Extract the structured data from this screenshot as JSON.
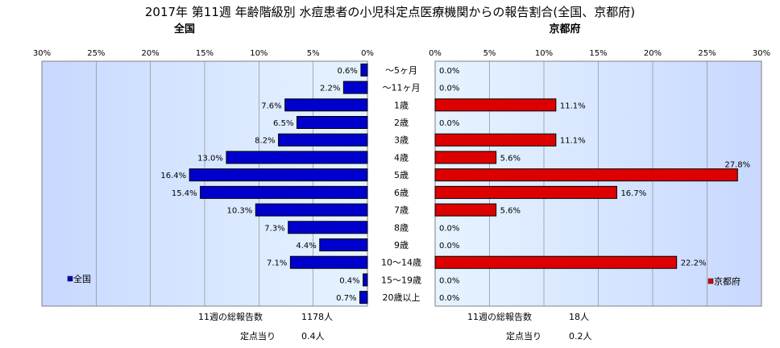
{
  "title": "2017年 第11週 年齢階級別 水痘患者の小児科定点医療機関からの報告割合(全国、京都府)",
  "left_subtitle": "全国",
  "right_subtitle": "京都府",
  "colors": {
    "national": "#0000cc",
    "kyoto": "#dd0000",
    "plot_bg": "#c8d8ff",
    "plot_bg_light": "#e6f4ff",
    "grid": "#7f7f7f"
  },
  "chart_data": {
    "type": "bar",
    "orientation": "horizontal",
    "categories": [
      "～5ヶ月",
      "～11ヶ月",
      "1歳",
      "2歳",
      "3歳",
      "4歳",
      "5歳",
      "6歳",
      "7歳",
      "8歳",
      "9歳",
      "10～14歳",
      "15～19歳",
      "20歳以上"
    ],
    "xlim": [
      0,
      30
    ],
    "ticks": [
      "0%",
      "5%",
      "10%",
      "15%",
      "20%",
      "25%",
      "30%"
    ],
    "series": [
      {
        "name": "全国",
        "values": [
          0.6,
          2.2,
          7.6,
          6.5,
          8.2,
          13.0,
          16.4,
          15.4,
          10.3,
          7.3,
          4.4,
          7.1,
          0.4,
          0.7
        ],
        "labels": [
          "0.6%",
          "2.2%",
          "7.6%",
          "6.5%",
          "8.2%",
          "13.0%",
          "16.4%",
          "15.4%",
          "10.3%",
          "7.3%",
          "4.4%",
          "7.1%",
          "0.4%",
          "0.7%"
        ]
      },
      {
        "name": "京都府",
        "values": [
          0.0,
          0.0,
          11.1,
          0.0,
          11.1,
          5.6,
          27.8,
          16.7,
          5.6,
          0.0,
          0.0,
          22.2,
          0.0,
          0.0
        ],
        "labels": [
          "0.0%",
          "0.0%",
          "11.1%",
          "0.0%",
          "11.1%",
          "5.6%",
          "27.8%",
          "16.7%",
          "5.6%",
          "0.0%",
          "0.0%",
          "22.2%",
          "0.0%",
          "0.0%"
        ]
      }
    ],
    "legend": [
      "bottom-left",
      "bottom-right"
    ],
    "grid": true
  },
  "footer": {
    "national_total_label": "11週の総報告数",
    "national_total_value": "1178人",
    "national_per_label": "定点当り",
    "national_per_value": "0.4人",
    "kyoto_total_label": "11週の総報告数",
    "kyoto_total_value": "18人",
    "kyoto_per_label": "定点当り",
    "kyoto_per_value": "0.2人"
  }
}
